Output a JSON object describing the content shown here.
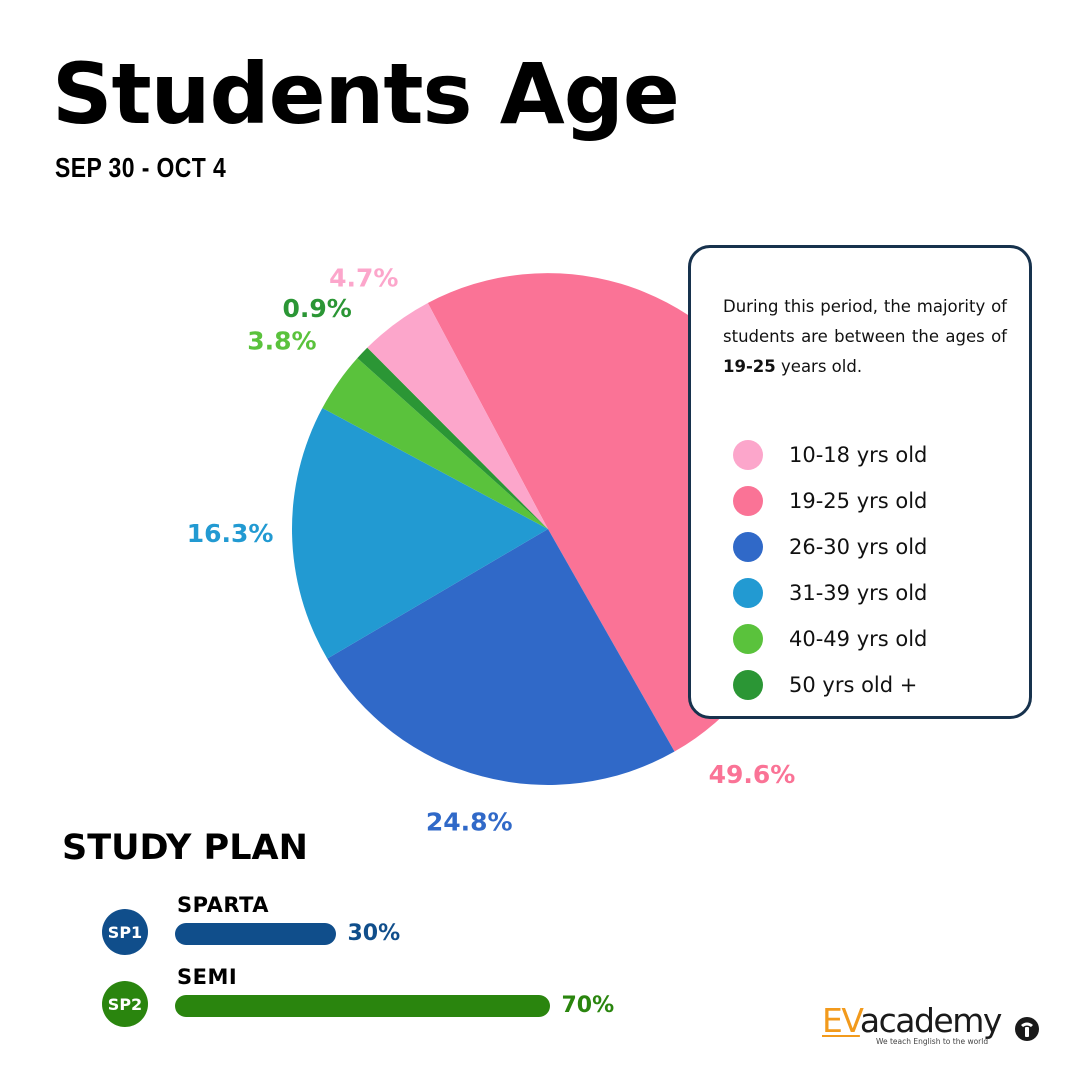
{
  "header": {
    "title": "Students Age",
    "date_range": "SEP 30 - OCT 4"
  },
  "chart_data": {
    "type": "pie",
    "title": "Students Age",
    "slices": [
      {
        "label": "19-25 yrs old",
        "value": 49.6,
        "display": "49.6%",
        "color": "#fa7396"
      },
      {
        "label": "26-30 yrs old",
        "value": 24.8,
        "display": "24.8%",
        "color": "#3069c8"
      },
      {
        "label": "31-39 yrs old",
        "value": 16.3,
        "display": "16.3%",
        "color": "#229ad2"
      },
      {
        "label": "40-49 yrs old",
        "value": 3.8,
        "display": "3.8%",
        "color": "#5ac23c"
      },
      {
        "label": "50 yrs old +",
        "value": 0.9,
        "display": "0.9%",
        "color": "#2b9635"
      },
      {
        "label": "10-18 yrs old",
        "value": 4.7,
        "display": "4.7%",
        "color": "#fca6cb"
      }
    ],
    "legend_position": "right"
  },
  "info_card": {
    "text_before": "During this period, the majority of students are between the ages of ",
    "highlight": "19-25",
    "text_after": " years old."
  },
  "legend": [
    {
      "label": "10-18 yrs old",
      "color": "#fca6cb"
    },
    {
      "label": "19-25 yrs old",
      "color": "#fa7396"
    },
    {
      "label": "26-30 yrs old",
      "color": "#3069c8"
    },
    {
      "label": "31-39 yrs old",
      "color": "#229ad2"
    },
    {
      "label": "40-49 yrs old",
      "color": "#5ac23c"
    },
    {
      "label": "50 yrs old +",
      "color": "#2b9635"
    }
  ],
  "study_plan": {
    "heading": "STUDY PLAN",
    "plans": [
      {
        "badge": "SP1",
        "name": "SPARTA",
        "value": 30,
        "display": "30%",
        "color": "#104e8b"
      },
      {
        "badge": "SP2",
        "name": "SEMI",
        "value": 70,
        "display": "70%",
        "color": "#2a850e"
      }
    ]
  },
  "brand": {
    "name_accent": "EV",
    "name_rest": "academy",
    "tagline": "We teach English to the world"
  }
}
